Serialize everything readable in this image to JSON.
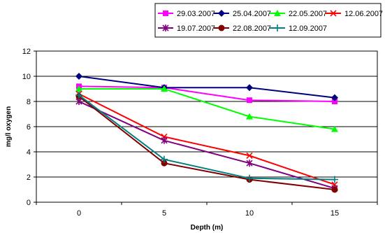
{
  "chart_data": {
    "type": "line",
    "title": "",
    "xlabel": "Depth (m)",
    "ylabel": "mg/l oxygen",
    "categories": [
      "0",
      "5",
      "10",
      "15"
    ],
    "ylim": [
      0,
      12
    ],
    "yticks": [
      0,
      2,
      4,
      6,
      8,
      10,
      12
    ],
    "grid": true,
    "legend_position": "top",
    "series": [
      {
        "name": "29.03.2007",
        "color": "#ff00ff",
        "marker": "square",
        "values": [
          9.2,
          9.1,
          8.1,
          8.0
        ]
      },
      {
        "name": "25.04.2007",
        "color": "#000080",
        "marker": "diamond",
        "values": [
          10.0,
          9.1,
          9.1,
          8.3
        ]
      },
      {
        "name": "22.05.2007",
        "color": "#00ff00",
        "marker": "triangle",
        "values": [
          9.0,
          9.0,
          6.8,
          5.8
        ]
      },
      {
        "name": "12.06.2007",
        "color": "#ff0000",
        "marker": "x",
        "values": [
          8.6,
          5.2,
          3.7,
          1.4
        ]
      },
      {
        "name": "19.07.2007",
        "color": "#800080",
        "marker": "star",
        "values": [
          8.0,
          4.9,
          3.1,
          1.1
        ]
      },
      {
        "name": "22.08.2007",
        "color": "#800000",
        "marker": "circle",
        "values": [
          8.4,
          3.1,
          1.8,
          1.0
        ]
      },
      {
        "name": "12.09.2007",
        "color": "#008080",
        "marker": "plus",
        "values": [
          8.5,
          3.4,
          1.9,
          1.8
        ]
      }
    ]
  }
}
